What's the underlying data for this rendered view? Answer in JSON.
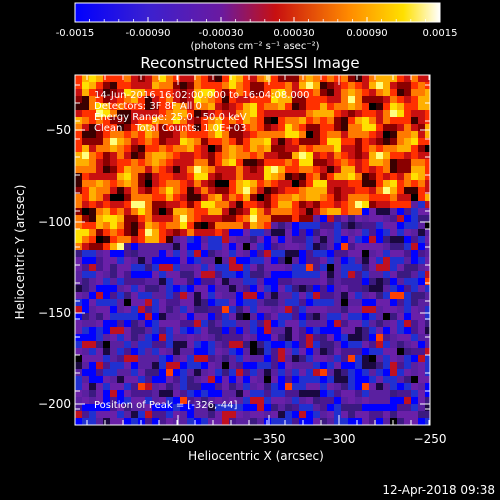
{
  "colorbar": {
    "tick_labels": [
      "-0.0015",
      "-0.00090",
      "-0.00030",
      "0.00030",
      "0.00090",
      "0.0015"
    ],
    "range": [
      -0.0015,
      0.0015
    ],
    "units": "(photons cm⁻² s⁻¹ asec⁻²)"
  },
  "chart_data": {
    "type": "heatmap",
    "title": "Reconstructed RHESSI Image",
    "xlabel": "Heliocentric X (arcsec)",
    "ylabel": "Heliocentric Y (arcsec)",
    "xlim": [
      -445,
      -250
    ],
    "ylim": [
      -212,
      -25
    ],
    "xticks": [
      -400,
      -350,
      -300,
      -250
    ],
    "xtick_labels": [
      "−400",
      "−350",
      "−300",
      "−250"
    ],
    "yticks": [
      -50,
      -100,
      -150,
      -200
    ],
    "ytick_labels": [
      "−50",
      "−100",
      "−150",
      "−200"
    ],
    "colormap": "rainbow-like (blue-purple-red-orange-yellow-white)",
    "annotations": {
      "time": "14-Jun-2016 16:02:00.000 to 16:04:08.000",
      "detectors": "Detectors: 3F 8F All 0",
      "energy": "Energy Range: 25.0 - 50.0 keV",
      "method": "Clean    Total Counts: 1.0E+03",
      "peak": "Position of Peak = [-326,-44]"
    }
  },
  "footer": {
    "date": "12-Apr-2018 09:38"
  }
}
